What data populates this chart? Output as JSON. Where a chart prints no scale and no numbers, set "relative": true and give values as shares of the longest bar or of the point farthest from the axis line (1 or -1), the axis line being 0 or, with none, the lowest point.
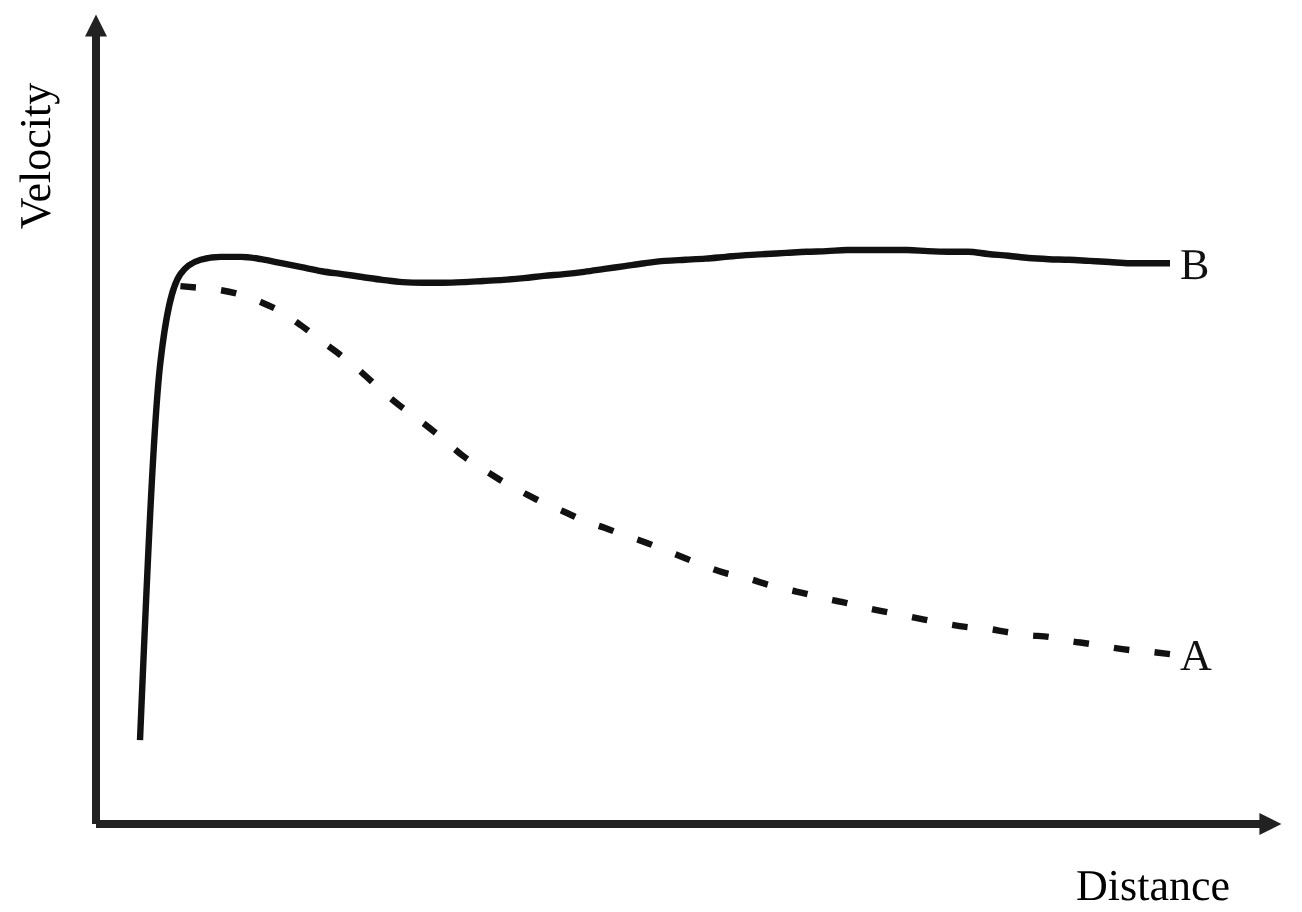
{
  "chart_data": {
    "type": "line",
    "xlabel": "Distance",
    "ylabel": "Velocity",
    "relative": true,
    "marker": "none",
    "categories": [
      null,
      null,
      null,
      null,
      null,
      null,
      null,
      null,
      null,
      null,
      null,
      null,
      null,
      null,
      null,
      null,
      null,
      null,
      null,
      null,
      null,
      null,
      null,
      null,
      null,
      null,
      null,
      null,
      null,
      null,
      null,
      null,
      null,
      null,
      null,
      null,
      null,
      null,
      null,
      null,
      null,
      null,
      null,
      null,
      null,
      null,
      null,
      null,
      null,
      null,
      null,
      null
    ],
    "series": [
      {
        "name": "A",
        "color": "#111111",
        "line_style": "dashed",
        "values": [
          null,
          null,
          0.937,
          0.934,
          0.93,
          0.922,
          0.909,
          0.892,
          0.868,
          0.841,
          0.815,
          0.786,
          0.754,
          0.725,
          0.699,
          0.671,
          0.641,
          0.618,
          0.596,
          0.577,
          0.559,
          0.544,
          0.528,
          0.516,
          0.503,
          0.491,
          0.477,
          0.463,
          0.449,
          0.437,
          0.429,
          0.418,
          0.409,
          0.401,
          0.392,
          0.385,
          0.376,
          0.369,
          0.362,
          0.355,
          0.348,
          0.343,
          0.34,
          0.334,
          0.329,
          0.326,
          0.319,
          0.314,
          0.308,
          0.303,
          0.3,
          0.296
        ]
      },
      {
        "name": "B",
        "color": "#111111",
        "line_style": "solid",
        "values": [
          0.146,
          0.801,
          0.958,
          0.983,
          0.988,
          0.988,
          0.984,
          0.977,
          0.97,
          0.963,
          0.958,
          0.953,
          0.948,
          0.944,
          0.943,
          0.943,
          0.944,
          0.946,
          0.948,
          0.951,
          0.955,
          0.958,
          0.962,
          0.967,
          0.972,
          0.977,
          0.981,
          0.983,
          0.985,
          0.988,
          0.991,
          0.993,
          0.995,
          0.997,
          0.998,
          1,
          1,
          1,
          1,
          0.998,
          0.997,
          0.997,
          0.993,
          0.99,
          0.986,
          0.984,
          0.983,
          0.981,
          0.979,
          0.977,
          0.977,
          0.977
        ]
      }
    ]
  }
}
